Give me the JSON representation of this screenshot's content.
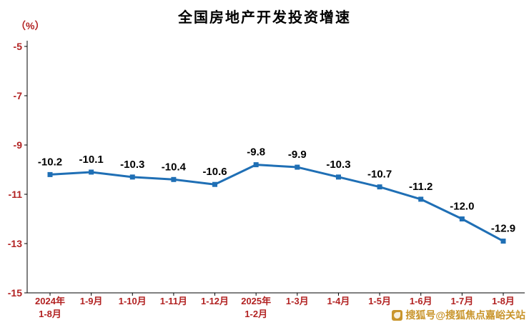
{
  "chart_data": {
    "type": "line",
    "title": "全国房地产开发投资增速",
    "unit_label": "（%）",
    "categories": [
      "2024年\n1-8月",
      "1-9月",
      "1-10月",
      "1-11月",
      "1-12月",
      "2025年\n1-2月",
      "1-3月",
      "1-4月",
      "1-5月",
      "1-6月",
      "1-7月",
      "1-8月"
    ],
    "values": [
      -10.2,
      -10.1,
      -10.3,
      -10.4,
      -10.6,
      -9.8,
      -9.9,
      -10.3,
      -10.7,
      -11.2,
      -12.0,
      -12.9
    ],
    "data_labels": [
      "-10.2",
      "-10.1",
      "-10.3",
      "-10.4",
      "-10.6",
      "-9.8",
      "-9.9",
      "-10.3",
      "-10.7",
      "-11.2",
      "-12.0",
      "-12.9"
    ],
    "ylim": [
      -15,
      -5
    ],
    "yticks": [
      -5,
      -7,
      -9,
      -11,
      -13,
      -15
    ],
    "grid": false,
    "legend": "none",
    "line_color": "#1f6fb5",
    "marker": "square",
    "label_color": "#000000",
    "axis_text_color": "#b22222",
    "axis_line_color": "#000000"
  },
  "watermark": {
    "text": "搜狐号@搜狐焦点嘉峪关站",
    "color": "#c9952c"
  }
}
